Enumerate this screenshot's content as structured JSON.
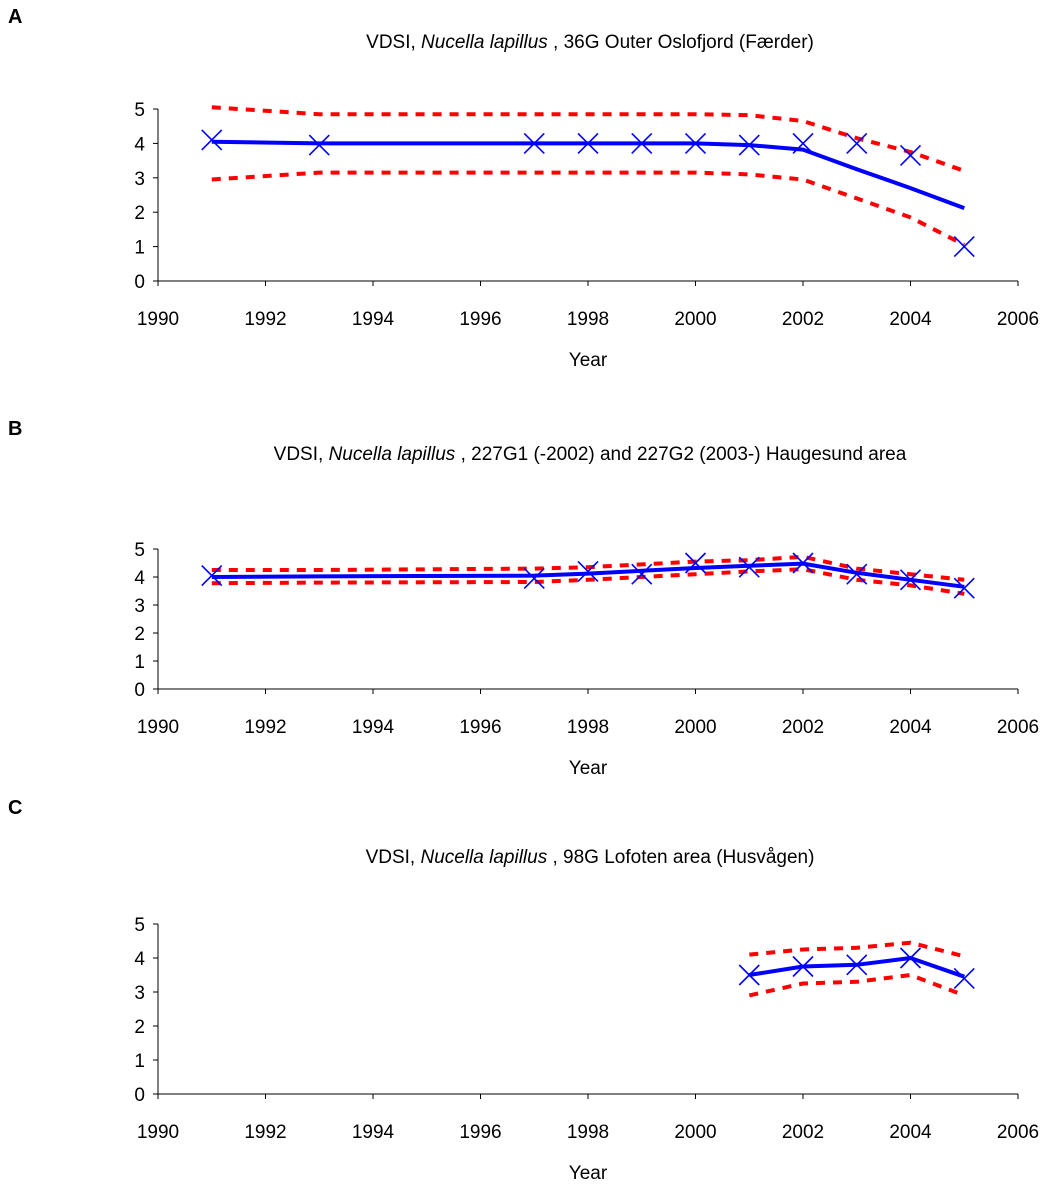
{
  "charts": [
    {
      "panel_label": "A",
      "title_prefix": "VDSI, ",
      "title_species": "Nucella lapillus",
      "title_suffix": " , 36G Outer Oslofjord (Færder)",
      "xlabel": "Year",
      "x_ticks": [
        "1990",
        "1992",
        "1994",
        "1996",
        "1998",
        "2000",
        "2002",
        "2004",
        "2006"
      ],
      "y_ticks": [
        "0",
        "1",
        "2",
        "3",
        "4",
        "5"
      ]
    },
    {
      "panel_label": "B",
      "title_prefix": "VDSI, ",
      "title_species": "Nucella lapillus",
      "title_suffix": " , 227G1 (-2002) and 227G2 (2003-) Haugesund area",
      "xlabel": "Year",
      "x_ticks": [
        "1990",
        "1992",
        "1994",
        "1996",
        "1998",
        "2000",
        "2002",
        "2004",
        "2006"
      ],
      "y_ticks": [
        "0",
        "1",
        "2",
        "3",
        "4",
        "5"
      ]
    },
    {
      "panel_label": "C",
      "title_prefix": "VDSI, ",
      "title_species": "Nucella lapillus",
      "title_suffix": " , 98G Lofoten area (Husvågen)",
      "xlabel": "Year",
      "x_ticks": [
        "1990",
        "1992",
        "1994",
        "1996",
        "1998",
        "2000",
        "2002",
        "2004",
        "2006"
      ],
      "y_ticks": [
        "0",
        "1",
        "2",
        "3",
        "4",
        "5"
      ]
    }
  ],
  "colors": {
    "trend": "#0000ff",
    "observed": "#0000ff",
    "confidence": "#ff0000"
  },
  "chart_data": [
    {
      "type": "line",
      "title": "VDSI, Nucella lapillus , 36G Outer Oslofjord (Færder)",
      "xlabel": "Year",
      "ylabel": "",
      "xlim": [
        1990,
        2006
      ],
      "ylim": [
        0,
        5
      ],
      "grid": false,
      "series": [
        {
          "kind": "observed",
          "marker": "x",
          "x": [
            1991,
            1993,
            1997,
            1998,
            1999,
            2000,
            2001,
            2002,
            2003,
            2004,
            2005
          ],
          "y": [
            4.1,
            3.95,
            4.0,
            4.0,
            4.0,
            4.0,
            3.95,
            4.0,
            4.0,
            3.65,
            1.0
          ]
        },
        {
          "kind": "trend",
          "x": [
            1991,
            1993,
            1997,
            1998,
            1999,
            2000,
            2001,
            2002,
            2003,
            2004,
            2005
          ],
          "y": [
            4.05,
            4.0,
            4.0,
            4.0,
            4.0,
            4.0,
            3.95,
            3.82,
            3.25,
            2.7,
            2.12
          ]
        },
        {
          "kind": "upper",
          "x": [
            1991,
            1993,
            1997,
            1998,
            1999,
            2000,
            2001,
            2002,
            2003,
            2004,
            2005
          ],
          "y": [
            5.05,
            4.85,
            4.85,
            4.85,
            4.85,
            4.85,
            4.82,
            4.65,
            4.15,
            3.75,
            3.2
          ]
        },
        {
          "kind": "lower",
          "x": [
            1991,
            1993,
            1997,
            1998,
            1999,
            2000,
            2001,
            2002,
            2003,
            2004,
            2005
          ],
          "y": [
            2.95,
            3.15,
            3.15,
            3.15,
            3.15,
            3.15,
            3.1,
            2.95,
            2.4,
            1.85,
            1.05
          ]
        }
      ]
    },
    {
      "type": "line",
      "title": "VDSI, Nucella lapillus , 227G1 (-2002) and 227G2 (2003-) Haugesund area",
      "xlabel": "Year",
      "ylabel": "",
      "xlim": [
        1990,
        2006
      ],
      "ylim": [
        0,
        5
      ],
      "grid": false,
      "series": [
        {
          "kind": "observed",
          "marker": "x",
          "x": [
            1991,
            1997,
            1998,
            1999,
            2000,
            2001,
            2002,
            2003,
            2004,
            2005
          ],
          "y": [
            4.05,
            3.95,
            4.2,
            4.1,
            4.5,
            4.35,
            4.5,
            4.1,
            3.9,
            3.6
          ]
        },
        {
          "kind": "trend",
          "x": [
            1991,
            1993,
            1997,
            1998,
            1999,
            2000,
            2001,
            2002,
            2003,
            2004,
            2005
          ],
          "y": [
            4.0,
            4.02,
            4.05,
            4.12,
            4.22,
            4.32,
            4.4,
            4.48,
            4.15,
            3.9,
            3.65
          ]
        },
        {
          "kind": "upper",
          "x": [
            1991,
            1993,
            1997,
            1998,
            1999,
            2000,
            2001,
            2002,
            2003,
            2004,
            2005
          ],
          "y": [
            4.25,
            4.25,
            4.3,
            4.35,
            4.45,
            4.55,
            4.6,
            4.72,
            4.3,
            4.1,
            3.9
          ]
        },
        {
          "kind": "lower",
          "x": [
            1991,
            1993,
            1997,
            1998,
            1999,
            2000,
            2001,
            2002,
            2003,
            2004,
            2005
          ],
          "y": [
            3.78,
            3.8,
            3.82,
            3.9,
            4.0,
            4.1,
            4.2,
            4.28,
            3.9,
            3.7,
            3.4
          ]
        }
      ]
    },
    {
      "type": "line",
      "title": "VDSI, Nucella lapillus , 98G Lofoten area (Husvågen)",
      "xlabel": "Year",
      "ylabel": "",
      "xlim": [
        1990,
        2006
      ],
      "ylim": [
        0,
        5
      ],
      "grid": false,
      "series": [
        {
          "kind": "observed",
          "marker": "x",
          "x": [
            2001,
            2002,
            2003,
            2004,
            2005
          ],
          "y": [
            3.5,
            3.75,
            3.8,
            4.0,
            3.4
          ]
        },
        {
          "kind": "trend",
          "x": [
            2001,
            2002,
            2003,
            2004,
            2005
          ],
          "y": [
            3.5,
            3.75,
            3.8,
            4.0,
            3.45
          ]
        },
        {
          "kind": "upper",
          "x": [
            2001,
            2002,
            2003,
            2004,
            2005
          ],
          "y": [
            4.1,
            4.25,
            4.3,
            4.45,
            4.05
          ]
        },
        {
          "kind": "lower",
          "x": [
            2001,
            2002,
            2003,
            2004,
            2005
          ],
          "y": [
            2.9,
            3.25,
            3.3,
            3.5,
            2.9
          ]
        }
      ]
    }
  ]
}
